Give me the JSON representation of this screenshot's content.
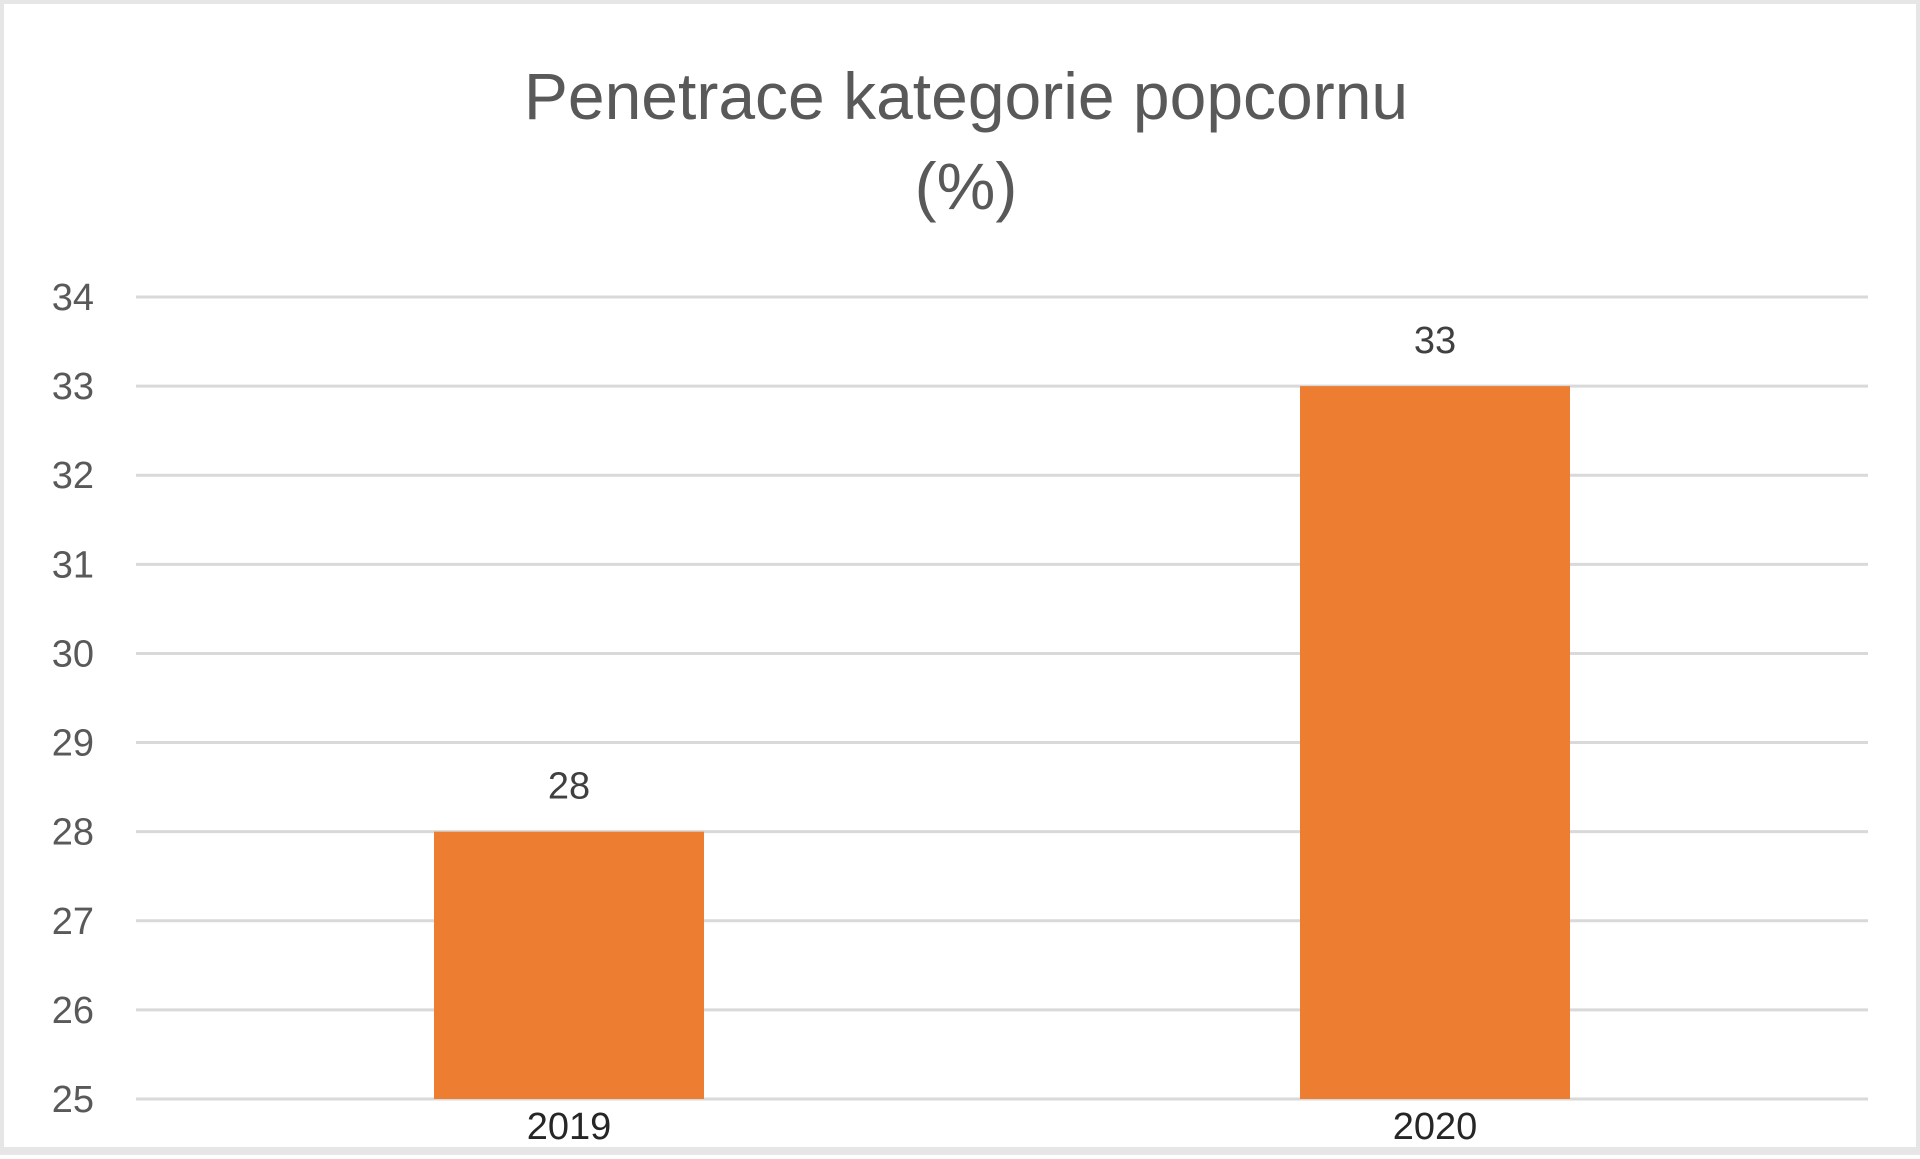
{
  "chart_data": {
    "type": "bar",
    "title": "Penetrace kategorie popcornu",
    "subtitle": "(%)",
    "xlabel": "",
    "ylabel": "",
    "categories": [
      "2019",
      "2020"
    ],
    "values": [
      28,
      33
    ],
    "data_labels": [
      "28",
      "33"
    ],
    "yticks": [
      "25",
      "26",
      "27",
      "28",
      "29",
      "30",
      "31",
      "32",
      "33",
      "34"
    ],
    "ylim": [
      25,
      34
    ],
    "grid": true,
    "legend": "none",
    "bar_color": "#ED7D31",
    "grid_color": "#D9D9D9"
  }
}
